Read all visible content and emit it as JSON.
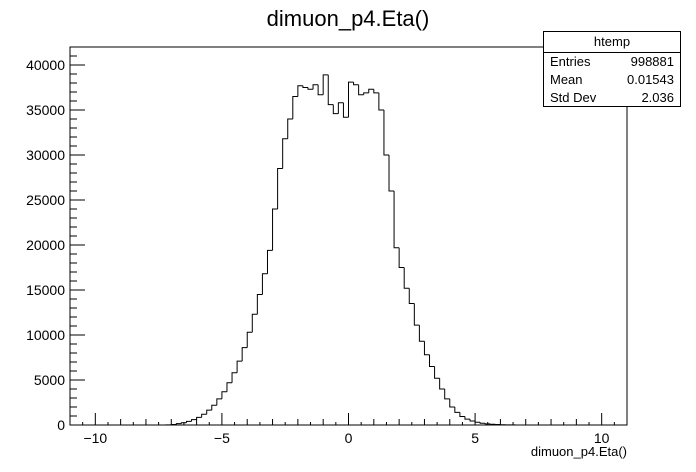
{
  "chart_data": {
    "type": "histogram",
    "title": "dimuon_p4.Eta()",
    "xlabel": "dimuon_p4.Eta()",
    "ylabel": "",
    "xlim": [
      -11,
      11
    ],
    "ylim": [
      0,
      42000
    ],
    "x_ticks": [
      -10,
      -5,
      0,
      5,
      10
    ],
    "y_ticks": [
      0,
      5000,
      10000,
      15000,
      20000,
      25000,
      30000,
      35000,
      40000
    ],
    "grid": false,
    "bin_edges_start": -7.2,
    "bin_width": 0.2,
    "values": [
      20,
      60,
      150,
      250,
      400,
      600,
      850,
      1200,
      1650,
      2200,
      2900,
      3700,
      4700,
      5800,
      7100,
      8600,
      10300,
      12300,
      14500,
      16800,
      19400,
      24000,
      28500,
      31800,
      34000,
      36500,
      37700,
      37500,
      37300,
      37800,
      36700,
      38900,
      35600,
      34600,
      35800,
      34200,
      38100,
      37800,
      36700,
      36900,
      37300,
      36900,
      35000,
      30000,
      26000,
      19700,
      17500,
      15200,
      13500,
      11100,
      9300,
      7800,
      6500,
      5200,
      4000,
      2900,
      2000,
      1400,
      950,
      650,
      450,
      300,
      200,
      120,
      80,
      50,
      30,
      15,
      10,
      5
    ]
  },
  "stats": {
    "name": "htemp",
    "rows": [
      {
        "label": "Entries",
        "value": "998881"
      },
      {
        "label": "Mean",
        "value": "0.01543"
      },
      {
        "label": "Std Dev",
        "value": "2.036"
      }
    ]
  }
}
